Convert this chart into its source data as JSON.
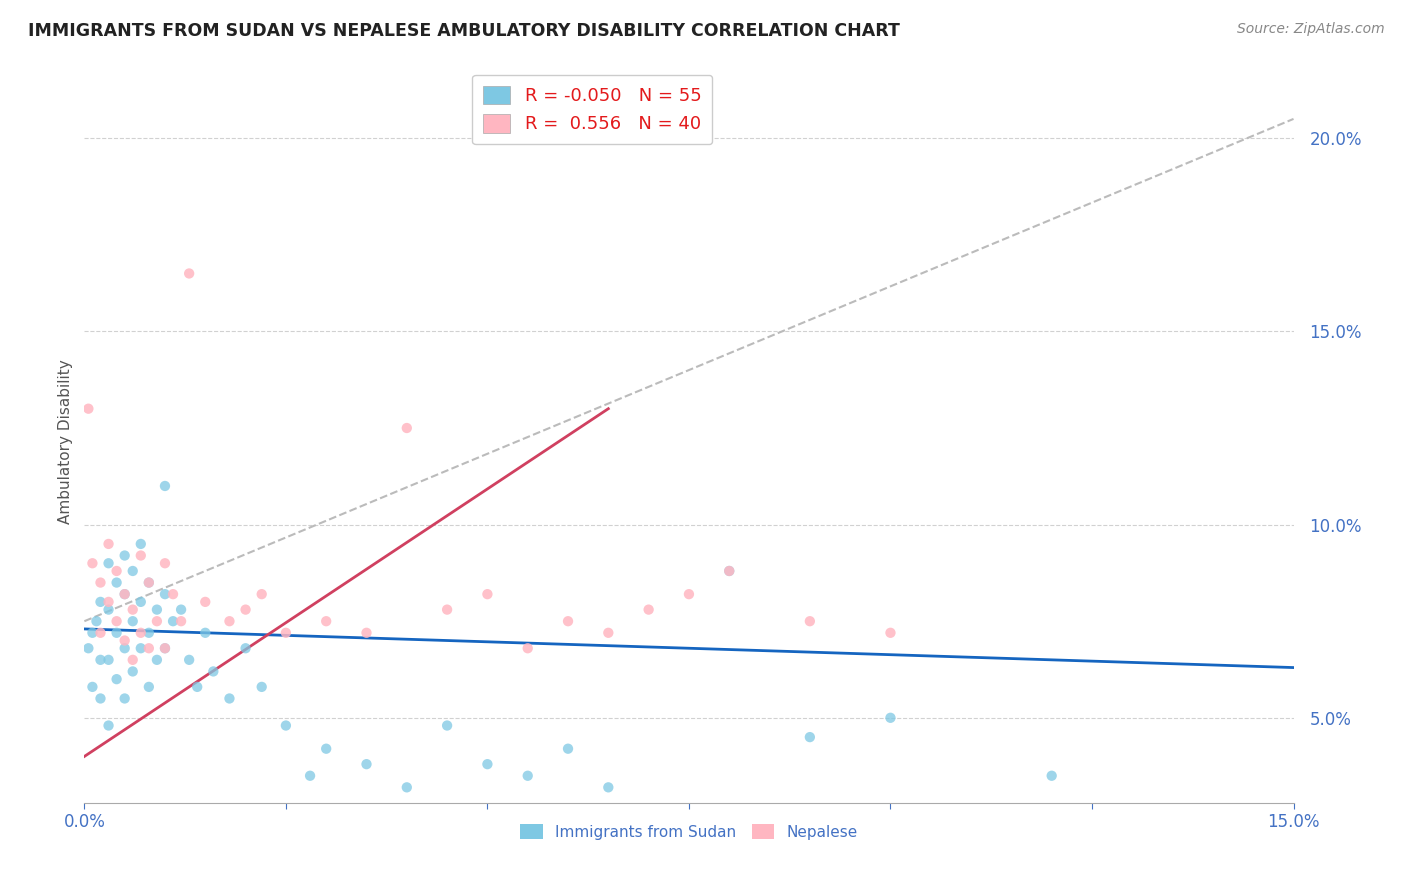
{
  "title": "IMMIGRANTS FROM SUDAN VS NEPALESE AMBULATORY DISABILITY CORRELATION CHART",
  "source": "Source: ZipAtlas.com",
  "ylabel": "Ambulatory Disability",
  "r_sudan": -0.05,
  "n_sudan": 55,
  "r_nepalese": 0.556,
  "n_nepalese": 40,
  "xlim": [
    0.0,
    0.15
  ],
  "ylim": [
    0.028,
    0.215
  ],
  "yticks": [
    0.05,
    0.1,
    0.15,
    0.2
  ],
  "color_sudan": "#7ec8e3",
  "color_nepalese": "#ffb6c1",
  "trendline_sudan": "#1565c0",
  "trendline_nepalese": "#d04060",
  "trendline_gray": "#bbbbbb",
  "background_color": "#ffffff",
  "sudan_x": [
    0.0005,
    0.001,
    0.001,
    0.0015,
    0.002,
    0.002,
    0.002,
    0.003,
    0.003,
    0.003,
    0.003,
    0.004,
    0.004,
    0.004,
    0.005,
    0.005,
    0.005,
    0.005,
    0.006,
    0.006,
    0.006,
    0.007,
    0.007,
    0.007,
    0.008,
    0.008,
    0.008,
    0.009,
    0.009,
    0.01,
    0.01,
    0.01,
    0.011,
    0.012,
    0.013,
    0.014,
    0.015,
    0.016,
    0.018,
    0.02,
    0.022,
    0.025,
    0.028,
    0.03,
    0.035,
    0.04,
    0.045,
    0.05,
    0.055,
    0.06,
    0.065,
    0.08,
    0.09,
    0.1,
    0.12
  ],
  "sudan_y": [
    0.068,
    0.072,
    0.058,
    0.075,
    0.08,
    0.065,
    0.055,
    0.09,
    0.078,
    0.065,
    0.048,
    0.085,
    0.072,
    0.06,
    0.092,
    0.082,
    0.068,
    0.055,
    0.088,
    0.075,
    0.062,
    0.095,
    0.08,
    0.068,
    0.085,
    0.072,
    0.058,
    0.078,
    0.065,
    0.11,
    0.082,
    0.068,
    0.075,
    0.078,
    0.065,
    0.058,
    0.072,
    0.062,
    0.055,
    0.068,
    0.058,
    0.048,
    0.035,
    0.042,
    0.038,
    0.032,
    0.048,
    0.038,
    0.035,
    0.042,
    0.032,
    0.088,
    0.045,
    0.05,
    0.035
  ],
  "nepalese_x": [
    0.0005,
    0.001,
    0.002,
    0.002,
    0.003,
    0.003,
    0.004,
    0.004,
    0.005,
    0.005,
    0.006,
    0.006,
    0.007,
    0.007,
    0.008,
    0.008,
    0.009,
    0.01,
    0.01,
    0.011,
    0.012,
    0.013,
    0.015,
    0.018,
    0.02,
    0.022,
    0.025,
    0.03,
    0.035,
    0.04,
    0.045,
    0.05,
    0.055,
    0.06,
    0.065,
    0.07,
    0.075,
    0.08,
    0.09,
    0.1
  ],
  "nepalese_y": [
    0.13,
    0.09,
    0.085,
    0.072,
    0.095,
    0.08,
    0.088,
    0.075,
    0.082,
    0.07,
    0.078,
    0.065,
    0.092,
    0.072,
    0.085,
    0.068,
    0.075,
    0.09,
    0.068,
    0.082,
    0.075,
    0.165,
    0.08,
    0.075,
    0.078,
    0.082,
    0.072,
    0.075,
    0.072,
    0.125,
    0.078,
    0.082,
    0.068,
    0.075,
    0.072,
    0.078,
    0.082,
    0.088,
    0.075,
    0.072
  ],
  "sudan_trendline_x0": 0.0,
  "sudan_trendline_y0": 0.073,
  "sudan_trendline_x1": 0.15,
  "sudan_trendline_y1": 0.063,
  "nepal_trendline_x0": 0.0,
  "nepal_trendline_y0": 0.04,
  "nepal_trendline_x1": 0.065,
  "nepal_trendline_y1": 0.13,
  "gray_trendline_x0": 0.0,
  "gray_trendline_y0": 0.075,
  "gray_trendline_x1": 0.15,
  "gray_trendline_y1": 0.205
}
